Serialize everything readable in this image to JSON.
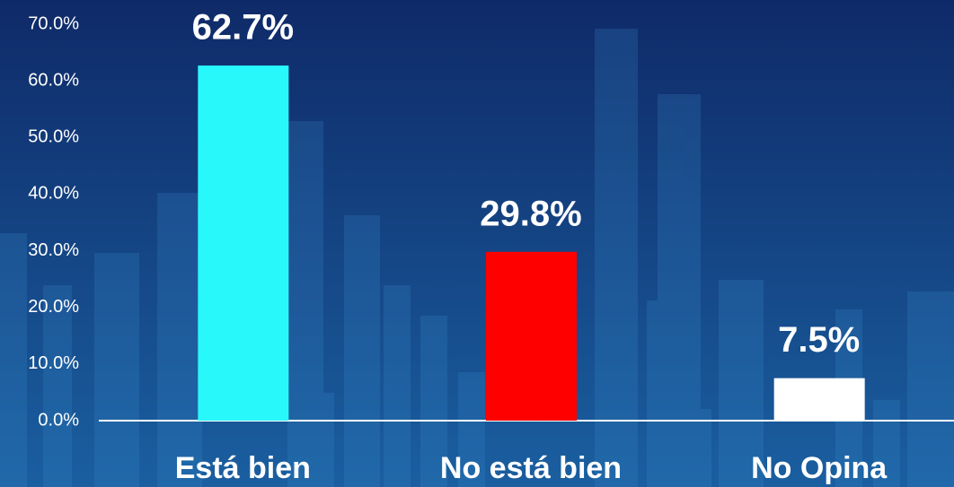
{
  "chart_data": {
    "type": "bar",
    "categories": [
      "Está bien",
      "No está bien",
      "No Opina"
    ],
    "values": [
      62.7,
      29.8,
      7.5
    ],
    "value_labels": [
      "62.7%",
      "29.8%",
      "7.5%"
    ],
    "colors": [
      "#29f8fb",
      "#ff0000",
      "#ffffff"
    ],
    "ylim": [
      0,
      70
    ],
    "yticks": [
      {
        "value": 0,
        "label": "0.0%"
      },
      {
        "value": 10,
        "label": "10.0%"
      },
      {
        "value": 20,
        "label": "20.0%"
      },
      {
        "value": 30,
        "label": "30.0%"
      },
      {
        "value": 40,
        "label": "40.0%"
      },
      {
        "value": 50,
        "label": "50.0%"
      },
      {
        "value": 60,
        "label": "60.0%"
      },
      {
        "value": 70,
        "label": "70.0%"
      }
    ],
    "grid": false
  }
}
